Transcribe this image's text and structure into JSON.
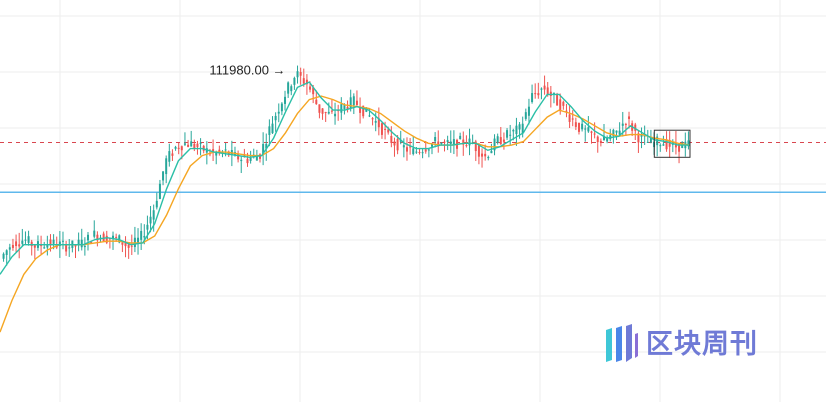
{
  "chart_data": {
    "type": "candlestick",
    "title": "",
    "xlabel": "",
    "ylabel": "",
    "ylim": [
      93000,
      116000
    ],
    "grid": true,
    "peak_annotation": {
      "value": 111980.0,
      "label": "111980.00 →"
    },
    "reference_lines": [
      {
        "kind": "dashed-red",
        "value": 107850
      },
      {
        "kind": "solid-blue",
        "value": 105000
      }
    ],
    "series": [
      {
        "kind": "price-path",
        "values": [
          101200,
          102100,
          102300,
          101900,
          102100,
          102000,
          101900,
          102100,
          102600,
          102400,
          102300,
          101800,
          102500,
          104100,
          106800,
          107700,
          107800,
          107500,
          107200,
          107300,
          107000,
          106900,
          107200,
          109000,
          110500,
          111800,
          111200,
          109700,
          109400,
          109900,
          110200,
          109500,
          108900,
          108000,
          107600,
          107300,
          107600,
          107900,
          107700,
          107900,
          107800,
          107000,
          107900,
          108300,
          108600,
          110500,
          111000,
          110300,
          109500,
          108700,
          108300,
          107900,
          108300,
          109200,
          108200,
          107800,
          107900,
          107600,
          107700
        ]
      },
      {
        "kind": "fast-moving-average",
        "values": [
          100300,
          101300,
          102000,
          102000,
          102000,
          102000,
          102000,
          102000,
          102300,
          102400,
          102300,
          102000,
          102100,
          103200,
          105200,
          106800,
          107500,
          107500,
          107300,
          107200,
          107100,
          107000,
          107100,
          108100,
          109600,
          111000,
          111300,
          110400,
          109700,
          109700,
          109900,
          109700,
          109100,
          108400,
          107800,
          107500,
          107500,
          107700,
          107700,
          107800,
          107800,
          107400,
          107600,
          108000,
          108400,
          109600,
          110600,
          110600,
          109900,
          109100,
          108500,
          108100,
          108200,
          108800,
          108400,
          108000,
          107900,
          107700,
          107700
        ]
      },
      {
        "kind": "slow-moving-average",
        "values": [
          97000,
          98800,
          100300,
          101200,
          101700,
          102000,
          102000,
          102000,
          102100,
          102200,
          102200,
          102100,
          102100,
          102500,
          103700,
          105200,
          106500,
          107100,
          107300,
          107300,
          107200,
          107100,
          107100,
          107500,
          108400,
          109500,
          110300,
          110500,
          110300,
          110000,
          109900,
          109800,
          109500,
          109000,
          108500,
          108100,
          107800,
          107700,
          107700,
          107800,
          107800,
          107600,
          107600,
          107700,
          107900,
          108600,
          109300,
          109700,
          109500,
          109200,
          108800,
          108400,
          108200,
          108300,
          108300,
          108100,
          108000,
          107800,
          107700
        ]
      }
    ],
    "highlight_box": {
      "x_index_from": 55,
      "x_index_to": 58,
      "y_from": 107000,
      "y_to": 108550
    }
  },
  "watermark": {
    "text": "区块周刊",
    "logo": "bars-logo"
  },
  "colors": {
    "up": "#26a69a",
    "down": "#ef5350",
    "fast_ma": "#2bbfa7",
    "slow_ma": "#f5a623",
    "dashed_line": "#d9464f",
    "blue_line": "#5fb8ec",
    "grid": "#eeeeee",
    "watermark": "#6f7ad6"
  }
}
